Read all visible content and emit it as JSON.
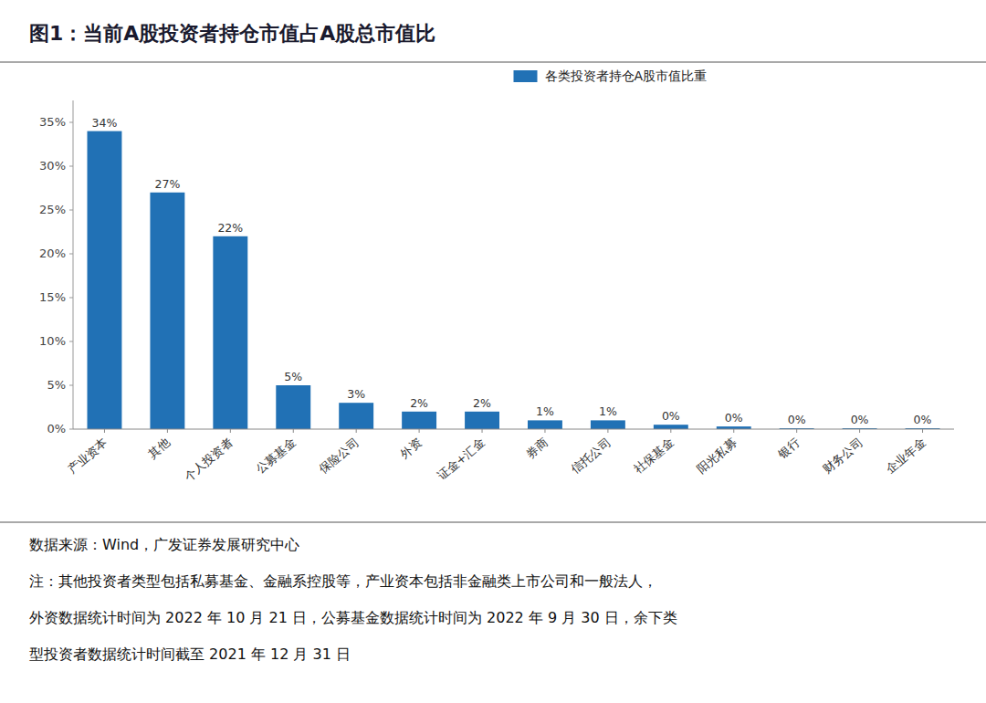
{
  "chart_data": {
    "type": "bar",
    "title": "图1：当前A股投资者持仓市值占A股总市值比",
    "categories": [
      "产业资本",
      "其他",
      "个人投资者",
      "公募基金",
      "保险公司",
      "外资",
      "证金+汇金",
      "券商",
      "信托公司",
      "社保基金",
      "阳光私募",
      "银行",
      "财务公司",
      "企业年金"
    ],
    "series": [
      {
        "name": "各类投资者持仓A股市值比重",
        "color": "#2171B5",
        "values": [
          0.34,
          0.27,
          0.22,
          0.05,
          0.03,
          0.02,
          0.02,
          0.01,
          0.01,
          0.005,
          0.003,
          0.001,
          0.001,
          0.001
        ],
        "value_labels": [
          "34%",
          "27%",
          "22%",
          "5%",
          "3%",
          "2%",
          "2%",
          "1%",
          "1%",
          "0%",
          "0%",
          "0%",
          "0%",
          "0%"
        ]
      }
    ],
    "ylim": [
      0,
      0.375
    ],
    "yticks": [
      {
        "value": 0.0,
        "label": "0%"
      },
      {
        "value": 0.05,
        "label": "5%"
      },
      {
        "value": 0.1,
        "label": "10%"
      },
      {
        "value": 0.15,
        "label": "15%"
      },
      {
        "value": 0.2,
        "label": "20%"
      },
      {
        "value": 0.25,
        "label": "25%"
      },
      {
        "value": 0.3,
        "label": "30%"
      },
      {
        "value": 0.35,
        "label": "35%"
      }
    ],
    "grid": false,
    "legend": "top",
    "data_labels": true,
    "annotations": [
      "数据来源：Wind，广发证券发展研究中心",
      "注：其他投资者类型包括私募基金、金融系控股等，产业资本包括非金融类上市公司和一般法人，",
      "外资数据统计时间为 2022 年 10 月 21 日，公募基金数据统计时间为 2022 年 9 月 30 日，余下类",
      "型投资者数据统计时间截至 2021 年 12 月 31 日"
    ]
  }
}
